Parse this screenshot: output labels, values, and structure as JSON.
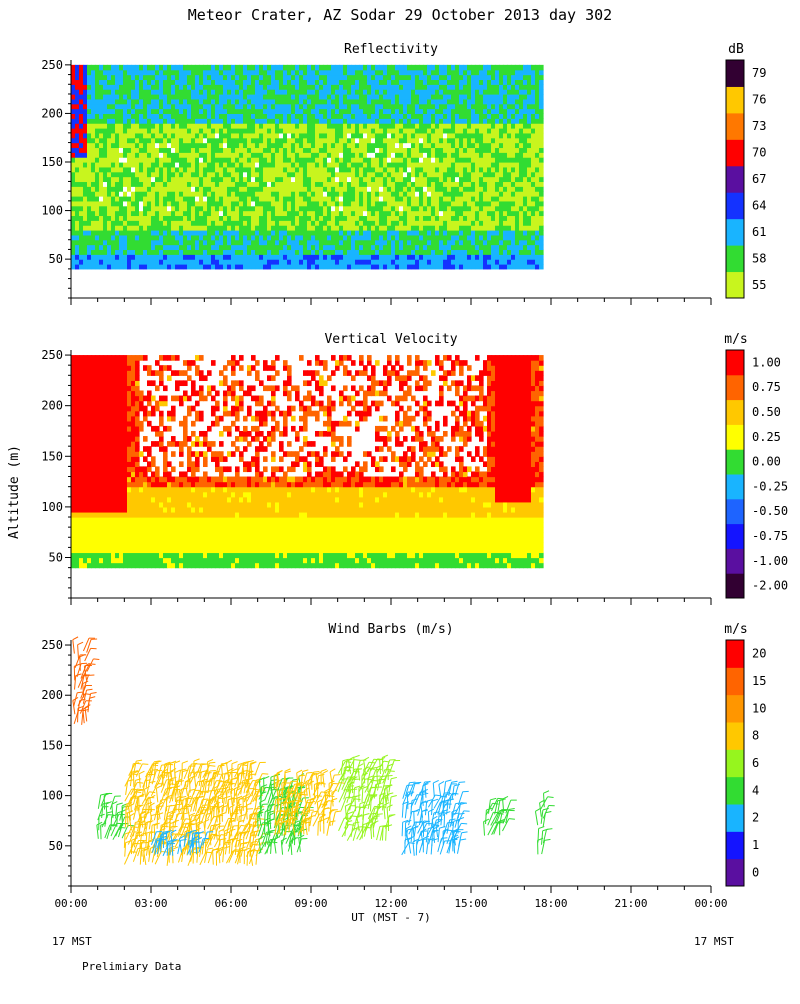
{
  "header": {
    "title": "Meteor Crater, AZ  Sodar  29 October 2013  day 302"
  },
  "footer": {
    "left_time_note": "17 MST",
    "right_time_note": "17 MST",
    "note": "Prelimiary Data"
  },
  "chart_data": [
    {
      "type": "heatmap",
      "title": "Reflectivity",
      "units": "dB",
      "ylabel": "",
      "xlim_hours": [
        0,
        24
      ],
      "ylim": [
        10,
        255
      ],
      "data_alt_range": [
        40,
        250
      ],
      "data_time_range_hours": [
        0,
        17.7
      ],
      "yticks": [
        50,
        100,
        150,
        200,
        250
      ],
      "colorbar": {
        "labels": [
          "55",
          "58",
          "61",
          "64",
          "67",
          "70",
          "73",
          "76",
          "79"
        ],
        "colors": [
          "#c8f51e",
          "#32dc32",
          "#19b4ff",
          "#1432ff",
          "#5a0fa0",
          "#ff0000",
          "#ff7800",
          "#ffc800",
          "#320032"
        ]
      },
      "profile": [
        {
          "alt": 40,
          "dB": 61
        },
        {
          "alt": 60,
          "dB": 61
        },
        {
          "alt": 80,
          "dB": 58
        },
        {
          "alt": 100,
          "dB": 56
        },
        {
          "alt": 150,
          "dB": 57
        },
        {
          "alt": 200,
          "dB": 58
        },
        {
          "alt": 250,
          "dB": 60
        }
      ]
    },
    {
      "type": "heatmap",
      "title": "Vertical Velocity",
      "units": "m/s",
      "ylabel": "Altitude (m)",
      "xlim_hours": [
        0,
        24
      ],
      "ylim": [
        10,
        255
      ],
      "data_alt_range": [
        40,
        250
      ],
      "data_time_range_hours": [
        0,
        17.7
      ],
      "yticks": [
        50,
        100,
        150,
        200,
        250
      ],
      "colorbar": {
        "labels": [
          "-2.00",
          "-1.00",
          "-0.75",
          "-0.50",
          "-0.25",
          "0.00",
          "0.25",
          "0.50",
          "0.75",
          "1.00"
        ],
        "colors": [
          "#320032",
          "#5a0fa0",
          "#1414ff",
          "#1e64ff",
          "#19b4ff",
          "#32dc32",
          "#ffff00",
          "#ffc800",
          "#ff6400",
          "#ff0000"
        ]
      },
      "profile": [
        {
          "alt": 40,
          "w": 0.0
        },
        {
          "alt": 50,
          "w": 0.1
        },
        {
          "alt": 70,
          "w": 0.3
        },
        {
          "alt": 90,
          "w": 0.4
        },
        {
          "alt": 110,
          "w": 0.55
        },
        {
          "alt": 140,
          "w": 0.8
        },
        {
          "alt": 180,
          "w": 1.0
        }
      ]
    },
    {
      "type": "scatter",
      "title": "Wind Barbs (m/s)",
      "units": "m/s",
      "xlabel": "UT  (MST - 7)",
      "xlim_hours": [
        0,
        24
      ],
      "ylim": [
        10,
        255
      ],
      "yticks": [
        50,
        100,
        150,
        200,
        250
      ],
      "xticks": [
        "00:00",
        "03:00",
        "06:00",
        "09:00",
        "12:00",
        "15:00",
        "18:00",
        "21:00",
        "00:00"
      ],
      "colorbar": {
        "labels": [
          "0",
          "1",
          "2",
          "4",
          "6",
          "8",
          "10",
          "15",
          "20"
        ],
        "colors": [
          "#5a0fa0",
          "#1414ff",
          "#19b4ff",
          "#32dc32",
          "#96f51e",
          "#ffc800",
          "#ff9600",
          "#ff6400",
          "#ff0000"
        ]
      },
      "barb_groups": [
        {
          "t_range": [
            0.1,
            0.7
          ],
          "alt_range": [
            170,
            250
          ],
          "speed": 13
        },
        {
          "t_range": [
            1.0,
            2.0
          ],
          "alt_range": [
            55,
            95
          ],
          "speed": 5
        },
        {
          "t_range": [
            2.0,
            7.0
          ],
          "alt_range": [
            30,
            125
          ],
          "speed": 8
        },
        {
          "t_range": [
            3.0,
            5.0
          ],
          "alt_range": [
            40,
            55
          ],
          "speed": 3
        },
        {
          "t_range": [
            7.0,
            8.7
          ],
          "alt_range": [
            40,
            110
          ],
          "speed": 5
        },
        {
          "t_range": [
            7.6,
            9.9
          ],
          "alt_range": [
            60,
            115
          ],
          "speed": 9
        },
        {
          "t_range": [
            10.0,
            12.0
          ],
          "alt_range": [
            55,
            130
          ],
          "speed": 6
        },
        {
          "t_range": [
            12.4,
            14.6
          ],
          "alt_range": [
            40,
            105
          ],
          "speed": 3
        },
        {
          "t_range": [
            15.5,
            16.4
          ],
          "alt_range": [
            60,
            90
          ],
          "speed": 4
        },
        {
          "t_range": [
            17.5,
            17.8
          ],
          "alt_range": [
            40,
            95
          ],
          "speed": 5
        }
      ]
    }
  ]
}
